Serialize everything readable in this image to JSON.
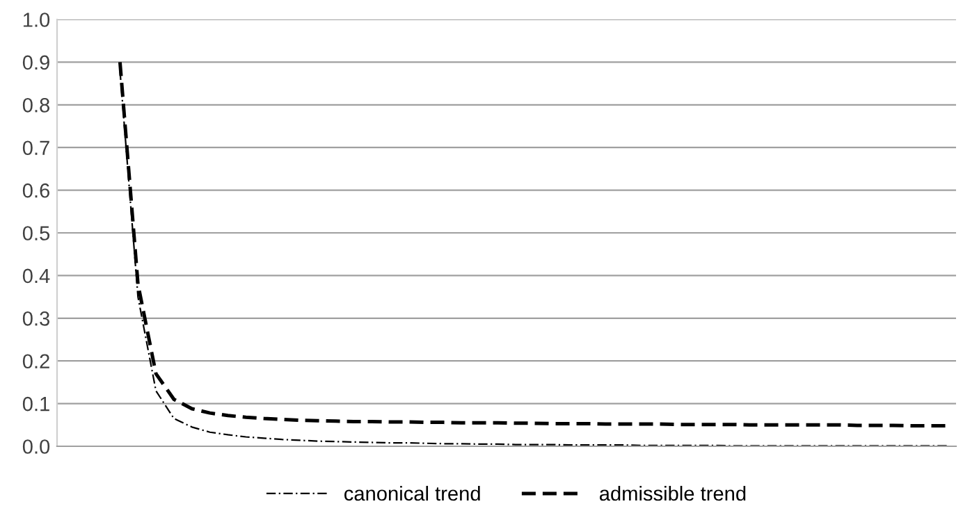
{
  "chart_data": {
    "type": "line",
    "categories": [
      null,
      null,
      null,
      null,
      null,
      null,
      null,
      null,
      null,
      null,
      null,
      null,
      null,
      null,
      null,
      null,
      null,
      null,
      null,
      null,
      null,
      null,
      null,
      null,
      null,
      null,
      null,
      null,
      null,
      null,
      null,
      null,
      null,
      null,
      null,
      null,
      null,
      null,
      null,
      null,
      null,
      null,
      null,
      null,
      null,
      null,
      null,
      null,
      null,
      null
    ],
    "series": [
      {
        "name": "canonical trend",
        "color": "#000000",
        "line_style": "dashdot",
        "values": [
          null,
          null,
          null,
          0.88,
          0.35,
          0.13,
          0.065,
          0.045,
          0.033,
          0.027,
          0.022,
          0.019,
          0.016,
          0.014,
          0.012,
          0.011,
          0.01,
          0.009,
          0.008,
          0.008,
          0.007,
          0.006,
          0.006,
          0.005,
          0.005,
          0.004,
          0.004,
          0.004,
          0.003,
          0.003,
          0.003,
          0.003,
          0.002,
          0.002,
          0.002,
          0.002,
          0.002,
          0.001,
          0.001,
          0.001,
          0.001,
          0.001,
          0.001,
          0.001,
          0.001,
          0.001,
          0.001,
          0.001,
          0.001,
          0.001
        ]
      },
      {
        "name": "admissible trend",
        "color": "#000000",
        "line_style": "dashed",
        "values": [
          null,
          null,
          null,
          0.9,
          0.38,
          0.17,
          0.11,
          0.088,
          0.078,
          0.072,
          0.068,
          0.065,
          0.063,
          0.061,
          0.06,
          0.059,
          0.058,
          0.058,
          0.057,
          0.057,
          0.056,
          0.056,
          0.055,
          0.055,
          0.055,
          0.054,
          0.054,
          0.053,
          0.053,
          0.053,
          0.052,
          0.052,
          0.052,
          0.052,
          0.051,
          0.051,
          0.051,
          0.051,
          0.05,
          0.05,
          0.05,
          0.05,
          0.05,
          0.05,
          0.049,
          0.049,
          0.049,
          0.048,
          0.048,
          0.048
        ]
      }
    ],
    "ylim": [
      0,
      1.0
    ],
    "yticks": [
      {
        "value": 0,
        "label": "0.0"
      },
      {
        "value": 0.1,
        "label": "0.1"
      },
      {
        "value": 0.2,
        "label": "0.2"
      },
      {
        "value": 0.3,
        "label": "0.3"
      },
      {
        "value": 0.4,
        "label": "0.4"
      },
      {
        "value": 0.5,
        "label": "0.5"
      },
      {
        "value": 0.6,
        "label": "0.6"
      },
      {
        "value": 0.7,
        "label": "0.7"
      },
      {
        "value": 0.8,
        "label": "0.8"
      },
      {
        "value": 0.9,
        "label": "0.9"
      },
      {
        "value": 1.0,
        "label": "1.0"
      }
    ],
    "grid": "y",
    "legend": "bottom",
    "tick_labels": "y"
  }
}
